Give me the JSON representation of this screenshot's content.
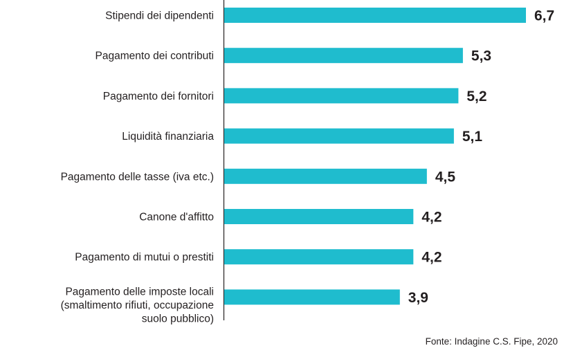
{
  "chart_data": {
    "type": "bar",
    "orientation": "horizontal",
    "title": "",
    "xlabel": "",
    "ylabel": "",
    "categories": [
      [
        "Stipendi dei dipendenti"
      ],
      [
        "Pagamento dei contributi"
      ],
      [
        "Pagamento dei fornitori"
      ],
      [
        "Liquidità finanziaria"
      ],
      [
        "Pagamento delle tasse (iva etc.)"
      ],
      [
        "Canone d'affitto"
      ],
      [
        "Pagamento di mutui o prestiti"
      ],
      [
        "Pagamento delle imposte locali",
        "(smaltimento rifiuti, occupazione",
        "suolo pubblico)"
      ]
    ],
    "values": [
      6.7,
      5.3,
      5.2,
      5.1,
      4.5,
      4.2,
      4.2,
      3.9
    ],
    "value_labels": [
      "6,7",
      "5,3",
      "5,2",
      "5,1",
      "4,5",
      "4,2",
      "4,2",
      "3,9"
    ],
    "xlim": [
      0,
      6.7
    ],
    "grid": false,
    "legend": "none",
    "bar_color": "#1fbcce",
    "source": "Fonte: Indagine C.S. Fipe, 2020"
  }
}
